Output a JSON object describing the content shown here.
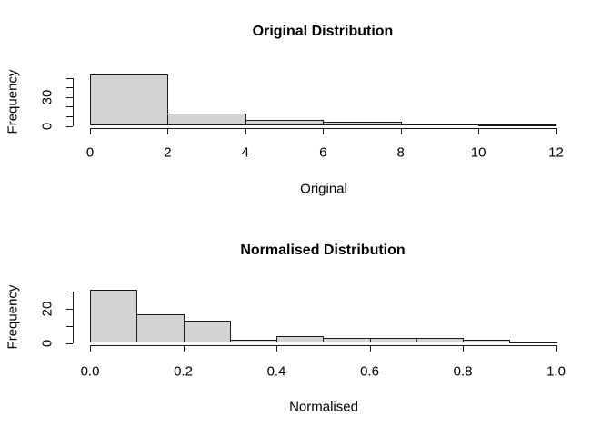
{
  "chart_data": [
    {
      "type": "bar",
      "subtype": "histogram",
      "title": "Original Distribution",
      "xlabel": "Original",
      "ylabel": "Frequency",
      "bins": {
        "start": 0,
        "width": 2
      },
      "counts": [
        54,
        13,
        6,
        4,
        2,
        1
      ],
      "xlim": [
        0,
        12
      ],
      "ylim": [
        0,
        50
      ],
      "x_ticks": [
        0,
        2,
        4,
        6,
        8,
        10,
        12
      ],
      "x_tick_labels": [
        "0",
        "2",
        "4",
        "6",
        "8",
        "10",
        "12"
      ],
      "y_ticks": [
        0,
        10,
        20,
        30,
        40,
        50
      ],
      "y_tick_labels": [
        "0",
        "",
        "",
        "30",
        "",
        ""
      ],
      "bar_fill": "#d3d3d3",
      "bar_border": "#1a1a1a",
      "grid": "off",
      "legend": "none"
    },
    {
      "type": "bar",
      "subtype": "histogram",
      "title": "Normalised Distribution",
      "xlabel": "Normalised",
      "ylabel": "Frequency",
      "bins": {
        "start": 0,
        "width": 0.1
      },
      "counts": [
        31,
        17,
        13,
        2,
        4,
        3,
        3,
        3,
        2,
        1
      ],
      "xlim": [
        0,
        1
      ],
      "ylim": [
        0,
        30
      ],
      "x_ticks": [
        0,
        0.2,
        0.4,
        0.6,
        0.8,
        1.0
      ],
      "x_tick_labels": [
        "0.0",
        "0.2",
        "0.4",
        "0.6",
        "0.8",
        "1.0"
      ],
      "y_ticks": [
        0,
        10,
        20,
        30
      ],
      "y_tick_labels": [
        "0",
        "",
        "20",
        ""
      ],
      "bar_fill": "#d3d3d3",
      "bar_border": "#1a1a1a",
      "grid": "off",
      "legend": "none"
    }
  ]
}
